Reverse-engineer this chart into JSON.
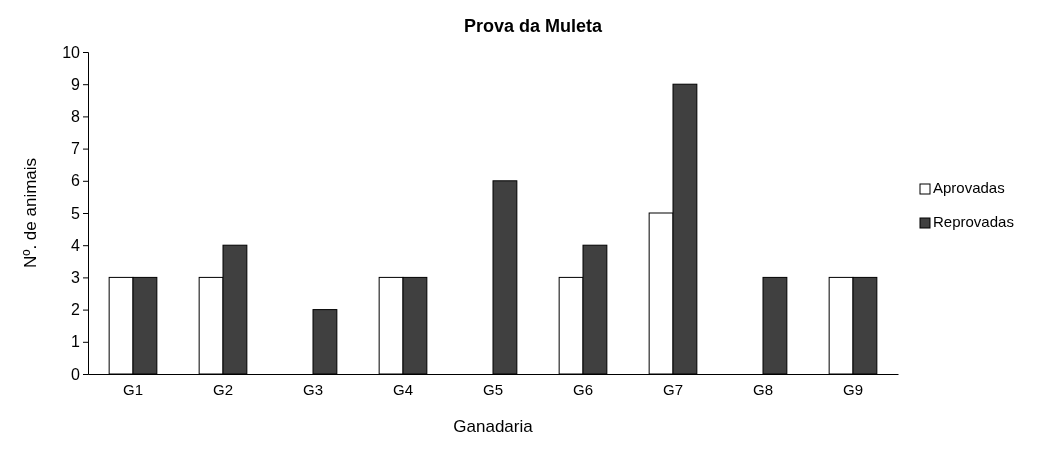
{
  "chart_data": {
    "type": "bar",
    "title": "Prova da Muleta",
    "xlabel": "Ganadaria",
    "ylabel": "Nº. de animais",
    "categories": [
      "G1",
      "G2",
      "G3",
      "G4",
      "G5",
      "G6",
      "G7",
      "G8",
      "G9"
    ],
    "series": [
      {
        "name": "Aprovadas",
        "color": "#ffffff",
        "values": [
          3,
          3,
          0,
          3,
          0,
          3,
          5,
          0,
          3
        ]
      },
      {
        "name": "Reprovadas",
        "color": "#404040",
        "values": [
          3,
          4,
          2,
          3,
          6,
          4,
          9,
          3,
          3
        ]
      }
    ],
    "ylim": [
      0,
      10
    ],
    "yticks": [
      0,
      1,
      2,
      3,
      4,
      5,
      6,
      7,
      8,
      9,
      10
    ],
    "legend": "right",
    "grid": false
  }
}
